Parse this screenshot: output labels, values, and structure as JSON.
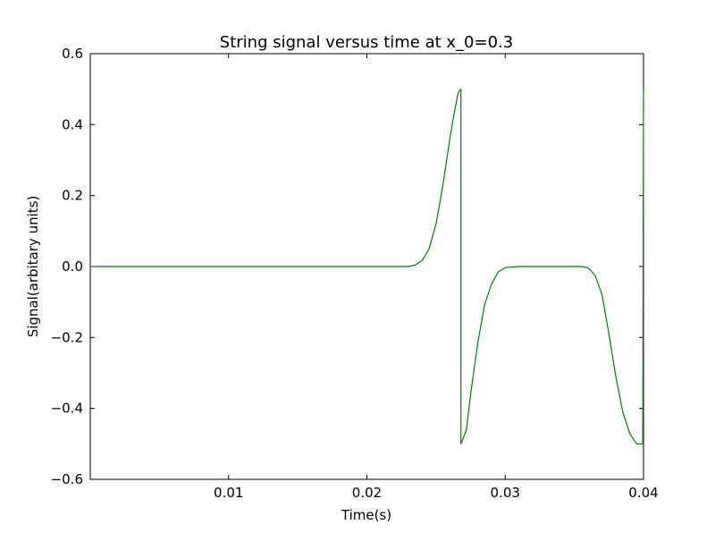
{
  "chart_data": {
    "type": "line",
    "title": "String signal versus time at x_0=0.3",
    "xlabel": "Time(s)",
    "ylabel": "Signal(arbitary units)",
    "xlim": [
      0.0,
      0.04
    ],
    "ylim": [
      -0.6,
      0.6
    ],
    "xticks": [
      {
        "value": 0.01,
        "label": "0.01"
      },
      {
        "value": 0.02,
        "label": "0.02"
      },
      {
        "value": 0.03,
        "label": "0.03"
      },
      {
        "value": 0.04,
        "label": "0.04"
      }
    ],
    "yticks": [
      {
        "value": 0.6,
        "label": "0.6"
      },
      {
        "value": 0.4,
        "label": "0.4"
      },
      {
        "value": 0.2,
        "label": "0.2"
      },
      {
        "value": 0.0,
        "label": "0.0"
      },
      {
        "value": -0.2,
        "label": "−0.2"
      },
      {
        "value": -0.4,
        "label": "−0.4"
      },
      {
        "value": -0.6,
        "label": "−0.6"
      }
    ],
    "grid": false,
    "series": [
      {
        "color": "#008000",
        "points": [
          [
            0.0,
            0.0
          ],
          [
            0.023,
            0.0
          ],
          [
            0.0235,
            0.004
          ],
          [
            0.024,
            0.017
          ],
          [
            0.0245,
            0.05
          ],
          [
            0.025,
            0.12
          ],
          [
            0.0255,
            0.23
          ],
          [
            0.026,
            0.36
          ],
          [
            0.0263,
            0.43
          ],
          [
            0.0266,
            0.49
          ],
          [
            0.0268,
            0.5
          ],
          [
            0.0268,
            -0.5
          ],
          [
            0.0272,
            -0.46
          ],
          [
            0.0275,
            -0.36
          ],
          [
            0.028,
            -0.22
          ],
          [
            0.0285,
            -0.11
          ],
          [
            0.029,
            -0.05
          ],
          [
            0.0295,
            -0.015
          ],
          [
            0.03,
            -0.003
          ],
          [
            0.031,
            0.0
          ],
          [
            0.0355,
            0.0
          ],
          [
            0.036,
            -0.004
          ],
          [
            0.0365,
            -0.025
          ],
          [
            0.037,
            -0.08
          ],
          [
            0.0375,
            -0.19
          ],
          [
            0.038,
            -0.31
          ],
          [
            0.0385,
            -0.41
          ],
          [
            0.039,
            -0.47
          ],
          [
            0.0395,
            -0.5
          ],
          [
            0.03995,
            -0.5
          ],
          [
            0.04,
            0.5
          ]
        ]
      }
    ]
  }
}
